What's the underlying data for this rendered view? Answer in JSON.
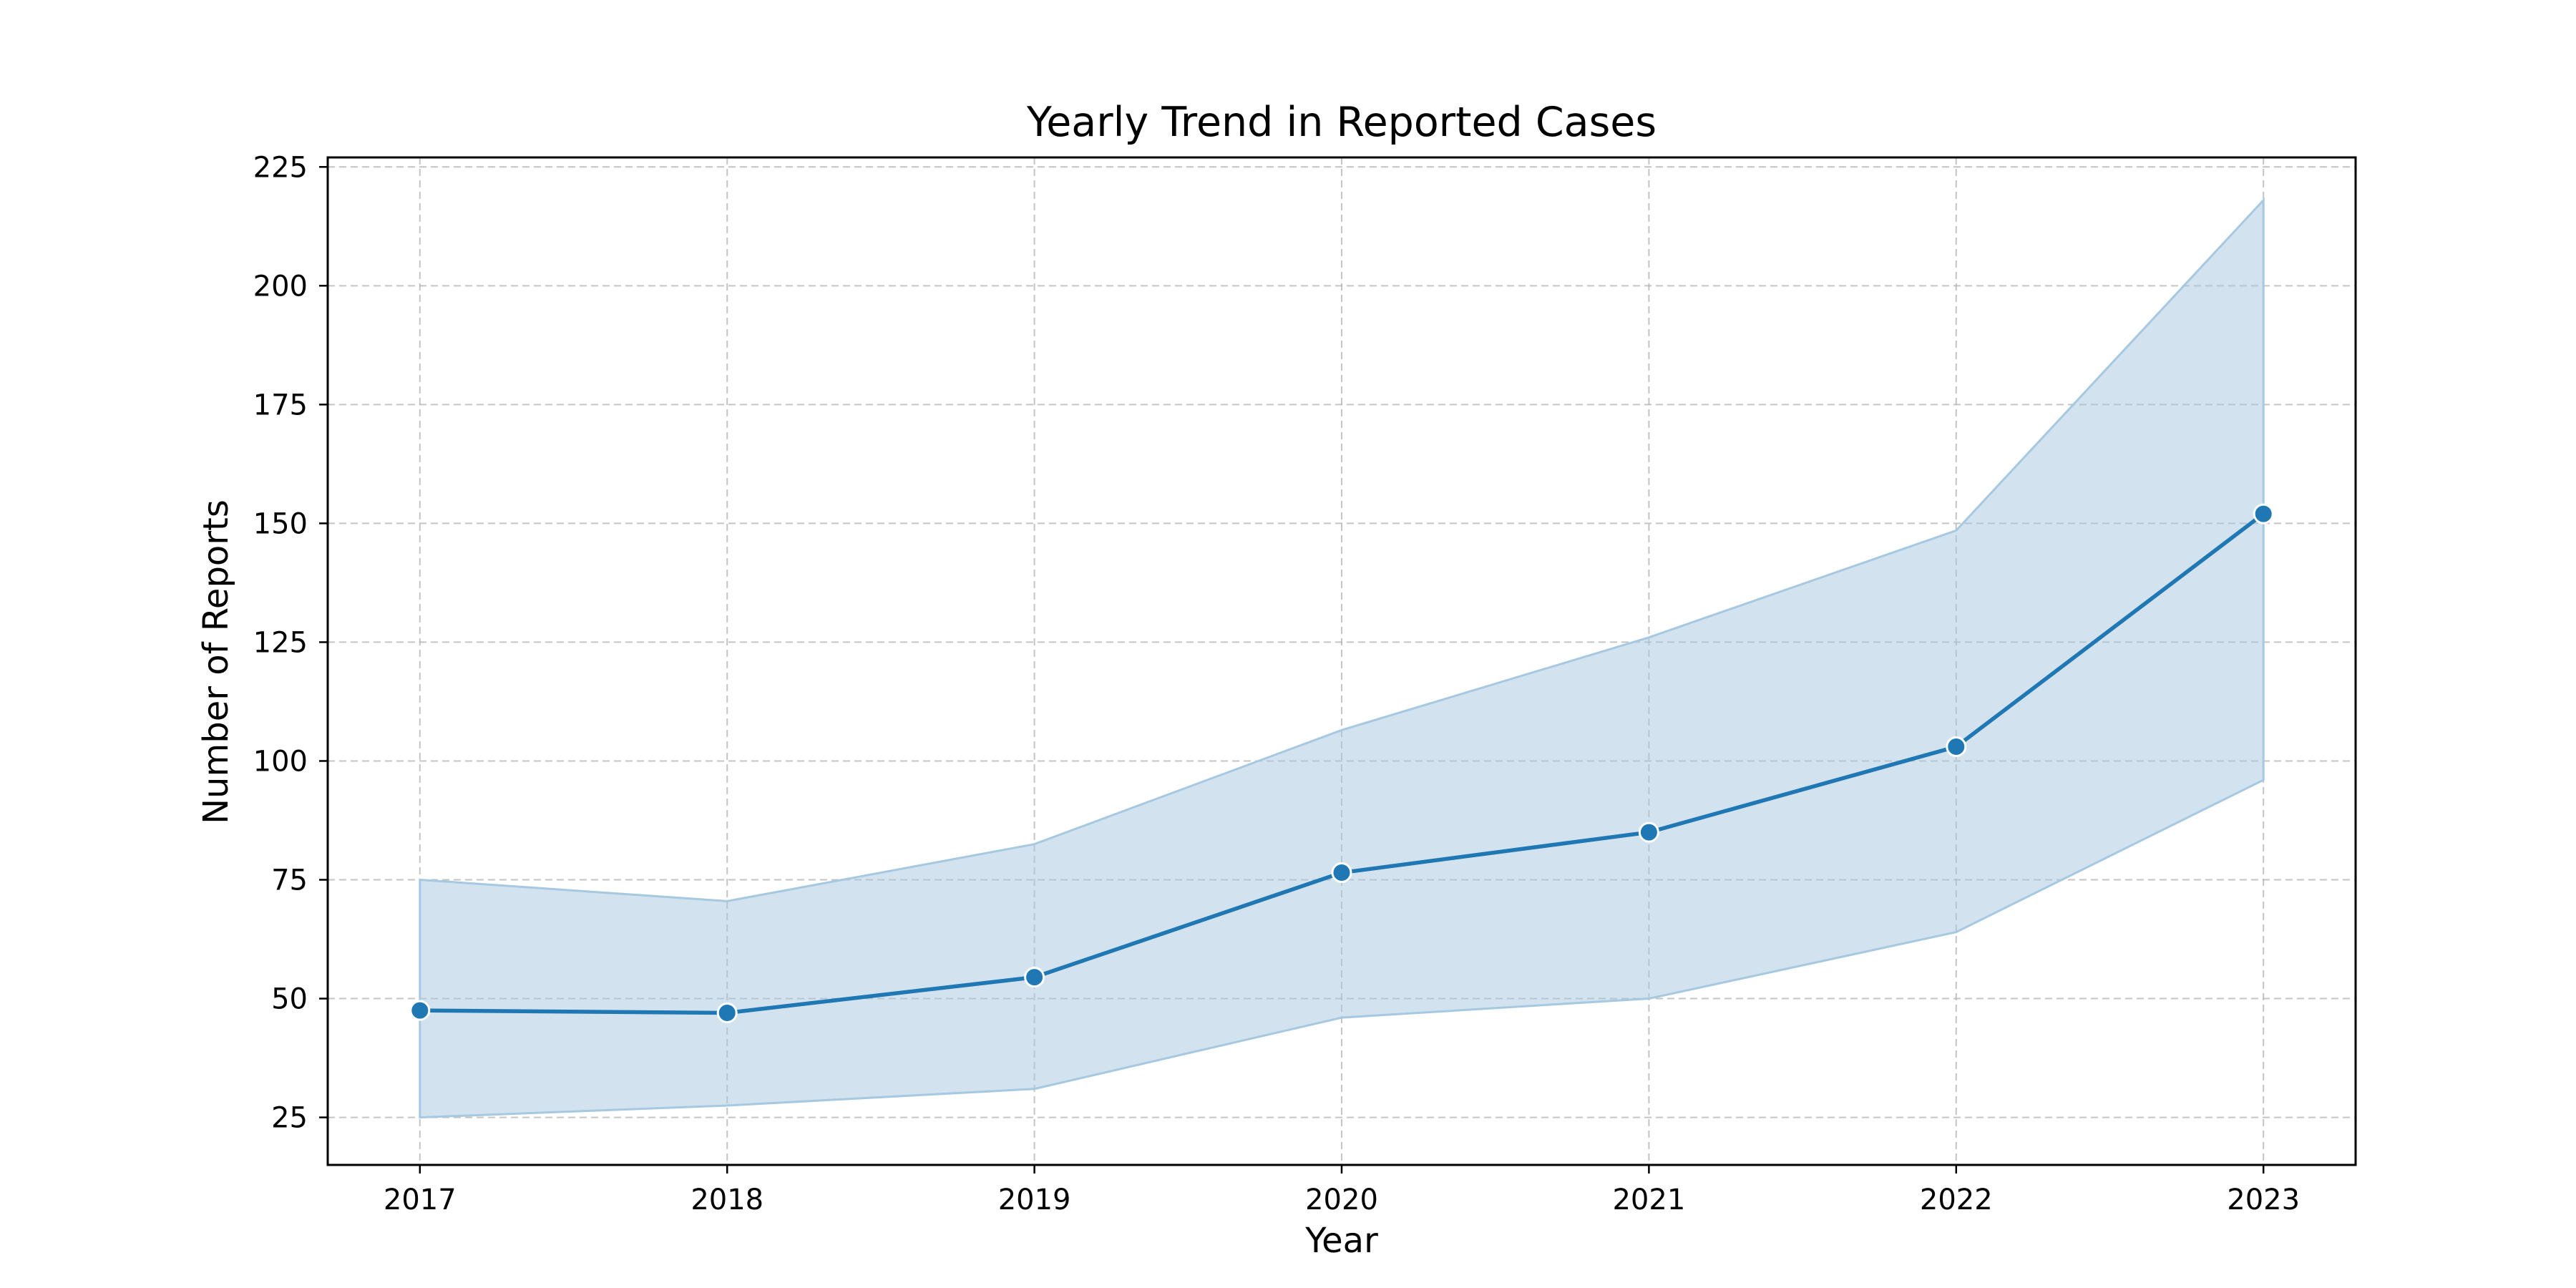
{
  "chart_data": {
    "type": "line",
    "title": "Yearly Trend in Reported Cases",
    "xlabel": "Year",
    "ylabel": "Number of Reports",
    "x": [
      2017,
      2018,
      2019,
      2020,
      2021,
      2022,
      2023
    ],
    "x_tick_labels": [
      "2017",
      "2018",
      "2019",
      "2020",
      "2021",
      "2022",
      "2023"
    ],
    "y_ticks": [
      25,
      50,
      75,
      100,
      125,
      150,
      175,
      200,
      225
    ],
    "y_tick_labels": [
      "25",
      "50",
      "75",
      "100",
      "125",
      "150",
      "175",
      "200",
      "225"
    ],
    "xlim": [
      2016.7,
      2023.3
    ],
    "ylim": [
      15,
      227
    ],
    "grid": true,
    "grid_style": "dashed",
    "legend": "none",
    "series": [
      {
        "values": [
          47.5,
          47.0,
          54.5,
          76.5,
          85.0,
          103.0,
          152.0
        ],
        "ci_lower": [
          25.0,
          27.5,
          31.0,
          46.0,
          50.0,
          64.0,
          96.0
        ],
        "ci_upper": [
          75.0,
          70.5,
          82.5,
          106.5,
          126.0,
          148.5,
          218.0
        ],
        "color": "#1f77b4",
        "band_color": "#a6c8e0",
        "marker": "circle"
      }
    ]
  }
}
